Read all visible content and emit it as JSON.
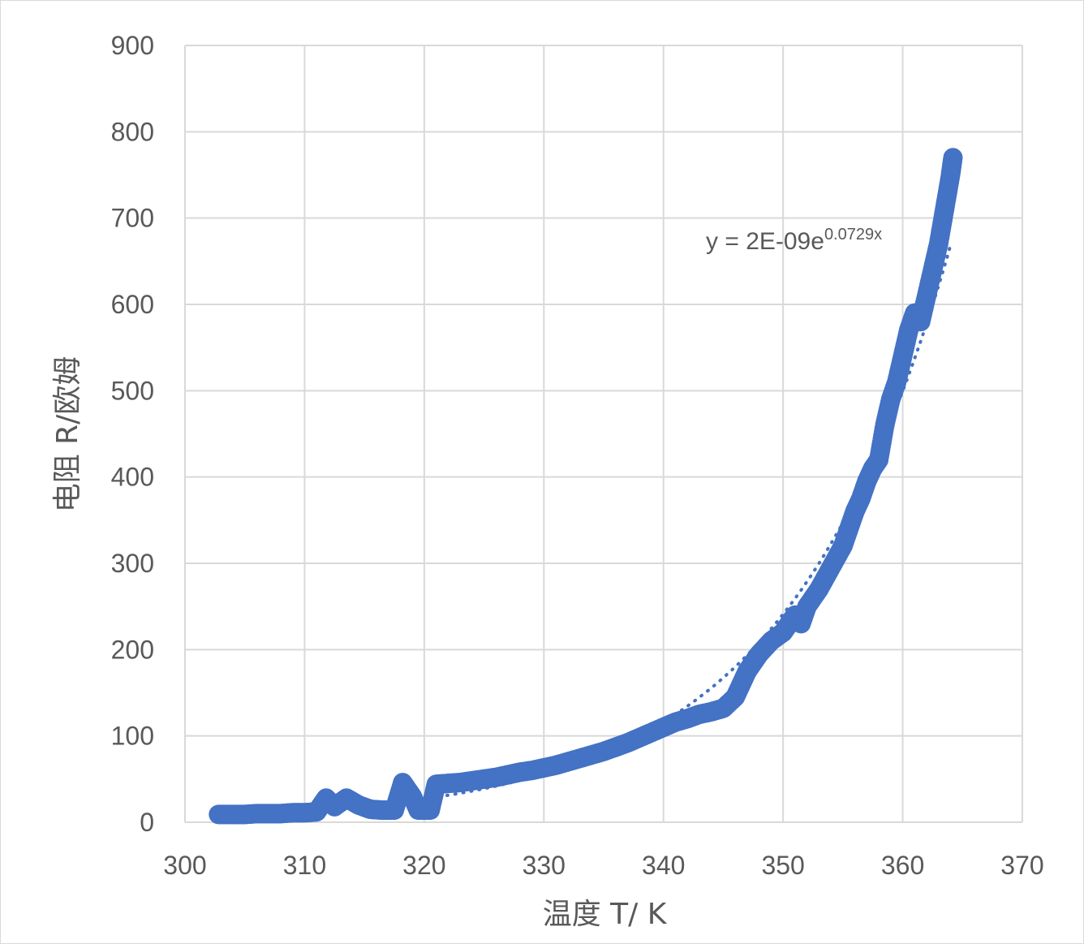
{
  "chart_data": {
    "type": "scatter",
    "title": "",
    "xlabel": "温度 T/ K",
    "ylabel": "电阻 R/欧姆",
    "xlim": [
      300,
      370
    ],
    "ylim": [
      0,
      900
    ],
    "x_ticks": [
      "300",
      "310",
      "320",
      "330",
      "340",
      "350",
      "360",
      "370"
    ],
    "y_ticks": [
      "0",
      "100",
      "200",
      "300",
      "400",
      "500",
      "600",
      "700",
      "800",
      "900"
    ],
    "grid": true,
    "legend": "none",
    "series": [
      {
        "marker_color": "#4472c4",
        "points": [
          [
            302.8,
            9
          ],
          [
            304,
            9
          ],
          [
            305,
            9
          ],
          [
            306,
            10
          ],
          [
            307,
            10
          ],
          [
            308,
            10
          ],
          [
            309,
            11
          ],
          [
            310,
            11
          ],
          [
            311,
            12
          ],
          [
            311.8,
            28
          ],
          [
            312.5,
            18
          ],
          [
            313.5,
            28
          ],
          [
            314.5,
            20
          ],
          [
            315.5,
            15
          ],
          [
            316.5,
            14
          ],
          [
            317.5,
            14
          ],
          [
            318.2,
            46
          ],
          [
            319,
            30
          ],
          [
            319.5,
            14
          ],
          [
            320.5,
            14
          ],
          [
            321,
            44
          ],
          [
            322,
            45
          ],
          [
            323,
            46
          ],
          [
            324,
            48
          ],
          [
            325,
            50
          ],
          [
            326,
            52
          ],
          [
            327,
            55
          ],
          [
            328,
            58
          ],
          [
            329,
            60
          ],
          [
            330,
            63
          ],
          [
            331,
            66
          ],
          [
            332,
            70
          ],
          [
            333,
            74
          ],
          [
            334,
            78
          ],
          [
            335,
            82
          ],
          [
            336,
            87
          ],
          [
            337,
            92
          ],
          [
            338,
            98
          ],
          [
            339,
            104
          ],
          [
            340,
            110
          ],
          [
            341,
            116
          ],
          [
            342,
            120
          ],
          [
            343,
            125
          ],
          [
            344,
            128
          ],
          [
            345,
            132
          ],
          [
            346,
            145
          ],
          [
            346.5,
            160
          ],
          [
            347,
            175
          ],
          [
            347.5,
            185
          ],
          [
            348,
            195
          ],
          [
            349,
            210
          ],
          [
            350,
            220
          ],
          [
            350.5,
            230
          ],
          [
            351,
            240
          ],
          [
            351.5,
            230
          ],
          [
            352,
            250
          ],
          [
            353,
            270
          ],
          [
            354,
            295
          ],
          [
            355,
            320
          ],
          [
            355.5,
            340
          ],
          [
            356,
            360
          ],
          [
            356.5,
            375
          ],
          [
            357,
            395
          ],
          [
            357.5,
            410
          ],
          [
            358,
            420
          ],
          [
            358.5,
            460
          ],
          [
            359,
            490
          ],
          [
            359.5,
            510
          ],
          [
            360,
            540
          ],
          [
            360.5,
            570
          ],
          [
            361,
            590
          ],
          [
            361.5,
            580
          ],
          [
            362,
            610
          ],
          [
            362.5,
            640
          ],
          [
            363,
            670
          ],
          [
            363.5,
            710
          ],
          [
            364,
            750
          ],
          [
            364.2,
            770
          ]
        ]
      }
    ],
    "trendline": {
      "style": "dotted",
      "coef_a": 2e-09,
      "coef_b": 0.0729,
      "equation_label": "y = 2E-09e",
      "equation_exponent": "0.0729x"
    }
  }
}
